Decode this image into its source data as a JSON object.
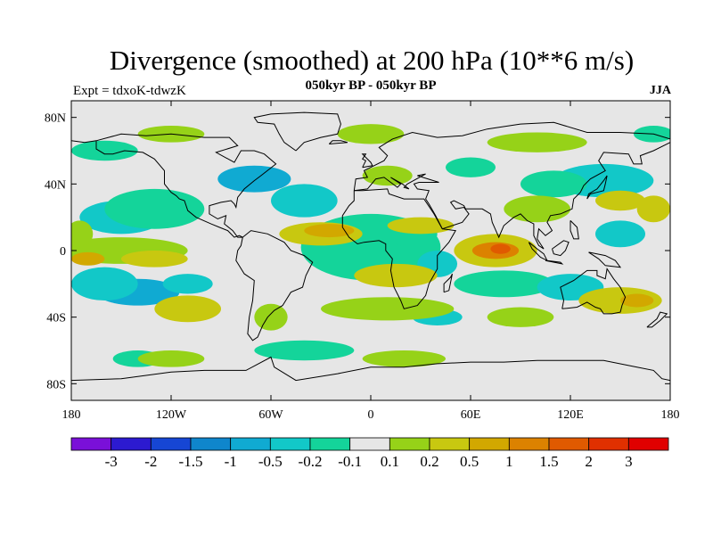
{
  "title": "Divergence (smoothed) at 200 hPa (10**6 m/s)",
  "subtitle": "050kyr BP - 050kyr BP",
  "left_label": "Expt = tdxoK-tdwzK",
  "right_label": "JJA",
  "map": {
    "projection": "cylindrical-equidistant",
    "lon_range": [
      -180,
      180
    ],
    "lat_range": [
      -90,
      90
    ],
    "lon_ticks": [
      {
        "value": -180,
        "label": "180"
      },
      {
        "value": -120,
        "label": "120W"
      },
      {
        "value": -60,
        "label": "60W"
      },
      {
        "value": 0,
        "label": "0"
      },
      {
        "value": 60,
        "label": "60E"
      },
      {
        "value": 120,
        "label": "120E"
      },
      {
        "value": 180,
        "label": "180"
      }
    ],
    "lat_ticks": [
      {
        "value": 80,
        "label": "80N"
      },
      {
        "value": 40,
        "label": "40N"
      },
      {
        "value": 0,
        "label": "0"
      },
      {
        "value": -40,
        "label": "40S"
      },
      {
        "value": -80,
        "label": "80S"
      }
    ],
    "background_color": "#e6e6e6",
    "coastline_color": "#000000"
  },
  "colorbar": {
    "colors": [
      "#7a10d8",
      "#2c1ad0",
      "#1646d4",
      "#0f86cc",
      "#10aad2",
      "#12c8c8",
      "#14d49a",
      "#e6e6e6",
      "#96d218",
      "#c8c810",
      "#d2a800",
      "#dc8200",
      "#e05a00",
      "#e03000",
      "#e00000"
    ],
    "labels": [
      "-3",
      "-2",
      "-1.5",
      "-1",
      "-0.5",
      "-0.2",
      "-0.1",
      "0.1",
      "0.2",
      "0.5",
      "1",
      "1.5",
      "2",
      "3"
    ]
  },
  "field_blobs": [
    {
      "lon": -5,
      "lat": -3,
      "rx": 8,
      "ry": 5,
      "level": 0
    },
    {
      "lon": -8,
      "lat": 0,
      "rx": 22,
      "ry": 10,
      "level": 2
    },
    {
      "lon": -5,
      "lat": 0,
      "rx": 30,
      "ry": 15,
      "level": 4
    },
    {
      "lon": 0,
      "lat": 2,
      "rx": 42,
      "ry": 20,
      "level": 6
    },
    {
      "lon": 25,
      "lat": 10,
      "rx": 15,
      "ry": 8,
      "level": 6
    },
    {
      "lon": 40,
      "lat": -8,
      "rx": 12,
      "ry": 8,
      "level": 5
    },
    {
      "lon": -150,
      "lat": 20,
      "rx": 25,
      "ry": 10,
      "level": 5
    },
    {
      "lon": -130,
      "lat": 25,
      "rx": 30,
      "ry": 12,
      "level": 6
    },
    {
      "lon": -140,
      "lat": -25,
      "rx": 25,
      "ry": 8,
      "level": 4
    },
    {
      "lon": -160,
      "lat": -20,
      "rx": 20,
      "ry": 10,
      "level": 5
    },
    {
      "lon": -110,
      "lat": -20,
      "rx": 15,
      "ry": 6,
      "level": 5
    },
    {
      "lon": -70,
      "lat": 43,
      "rx": 22,
      "ry": 8,
      "level": 4
    },
    {
      "lon": -40,
      "lat": 30,
      "rx": 20,
      "ry": 10,
      "level": 5
    },
    {
      "lon": 140,
      "lat": 42,
      "rx": 30,
      "ry": 10,
      "level": 5
    },
    {
      "lon": 110,
      "lat": 40,
      "rx": 20,
      "ry": 8,
      "level": 6
    },
    {
      "lon": 150,
      "lat": 10,
      "rx": 15,
      "ry": 8,
      "level": 5
    },
    {
      "lon": 80,
      "lat": -20,
      "rx": 30,
      "ry": 8,
      "level": 6
    },
    {
      "lon": 120,
      "lat": -22,
      "rx": 20,
      "ry": 8,
      "level": 5
    },
    {
      "lon": 40,
      "lat": -40,
      "rx": 15,
      "ry": 5,
      "level": 5
    },
    {
      "lon": -40,
      "lat": -60,
      "rx": 30,
      "ry": 6,
      "level": 6
    },
    {
      "lon": -140,
      "lat": -65,
      "rx": 15,
      "ry": 5,
      "level": 6
    },
    {
      "lon": -160,
      "lat": 60,
      "rx": 20,
      "ry": 6,
      "level": 6
    },
    {
      "lon": 60,
      "lat": 50,
      "rx": 15,
      "ry": 6,
      "level": 6
    },
    {
      "lon": 170,
      "lat": 70,
      "rx": 12,
      "ry": 5,
      "level": 6
    },
    {
      "lon": 75,
      "lat": 0,
      "rx": 25,
      "ry": 10,
      "level": 9
    },
    {
      "lon": 75,
      "lat": 0,
      "rx": 14,
      "ry": 5,
      "level": 11
    },
    {
      "lon": 78,
      "lat": 1,
      "rx": 6,
      "ry": 3,
      "level": 12
    },
    {
      "lon": -30,
      "lat": 10,
      "rx": 25,
      "ry": 7,
      "level": 9
    },
    {
      "lon": -25,
      "lat": 12,
      "rx": 15,
      "ry": 4,
      "level": 10
    },
    {
      "lon": 15,
      "lat": -15,
      "rx": 25,
      "ry": 7,
      "level": 9
    },
    {
      "lon": 30,
      "lat": 15,
      "rx": 20,
      "ry": 5,
      "level": 9
    },
    {
      "lon": -150,
      "lat": 0,
      "rx": 40,
      "ry": 8,
      "level": 8
    },
    {
      "lon": -130,
      "lat": -5,
      "rx": 20,
      "ry": 5,
      "level": 9
    },
    {
      "lon": -170,
      "lat": -5,
      "rx": 10,
      "ry": 4,
      "level": 10
    },
    {
      "lon": -110,
      "lat": -35,
      "rx": 20,
      "ry": 8,
      "level": 9
    },
    {
      "lon": 10,
      "lat": -35,
      "rx": 40,
      "ry": 7,
      "level": 8
    },
    {
      "lon": 150,
      "lat": -30,
      "rx": 25,
      "ry": 8,
      "level": 9
    },
    {
      "lon": 160,
      "lat": -30,
      "rx": 10,
      "ry": 4,
      "level": 10
    },
    {
      "lon": 100,
      "lat": 25,
      "rx": 20,
      "ry": 8,
      "level": 8
    },
    {
      "lon": 150,
      "lat": 30,
      "rx": 15,
      "ry": 6,
      "level": 9
    },
    {
      "lon": 170,
      "lat": 25,
      "rx": 10,
      "ry": 8,
      "level": 9
    },
    {
      "lon": 10,
      "lat": 45,
      "rx": 15,
      "ry": 6,
      "level": 8
    },
    {
      "lon": 0,
      "lat": 70,
      "rx": 20,
      "ry": 6,
      "level": 8
    },
    {
      "lon": 100,
      "lat": 65,
      "rx": 30,
      "ry": 6,
      "level": 8
    },
    {
      "lon": -120,
      "lat": 70,
      "rx": 20,
      "ry": 5,
      "level": 8
    },
    {
      "lon": -60,
      "lat": -40,
      "rx": 10,
      "ry": 8,
      "level": 8
    },
    {
      "lon": 90,
      "lat": -40,
      "rx": 20,
      "ry": 6,
      "level": 8
    },
    {
      "lon": -120,
      "lat": -65,
      "rx": 20,
      "ry": 5,
      "level": 8
    },
    {
      "lon": 20,
      "lat": -65,
      "rx": 25,
      "ry": 5,
      "level": 8
    },
    {
      "lon": -175,
      "lat": 10,
      "rx": 8,
      "ry": 8,
      "level": 8
    }
  ],
  "coastlines": [
    [
      [
        -165,
        66
      ],
      [
        -150,
        70
      ],
      [
        -135,
        69
      ],
      [
        -120,
        70
      ],
      [
        -100,
        68
      ],
      [
        -85,
        68
      ],
      [
        -80,
        63
      ],
      [
        -93,
        59
      ],
      [
        -82,
        53
      ],
      [
        -78,
        60
      ],
      [
        -70,
        60
      ],
      [
        -64,
        58
      ],
      [
        -57,
        52
      ],
      [
        -66,
        45
      ],
      [
        -70,
        42
      ],
      [
        -76,
        37
      ],
      [
        -80,
        32
      ],
      [
        -81,
        26
      ],
      [
        -82,
        28
      ],
      [
        -84,
        30
      ],
      [
        -90,
        29
      ],
      [
        -97,
        27
      ],
      [
        -97,
        22
      ],
      [
        -92,
        19
      ],
      [
        -87,
        21
      ],
      [
        -88,
        16
      ],
      [
        -83,
        12
      ],
      [
        -80,
        8
      ],
      [
        -77,
        8
      ],
      [
        -79,
        9
      ],
      [
        -82,
        8
      ],
      [
        -86,
        12
      ],
      [
        -91,
        14
      ],
      [
        -96,
        16
      ],
      [
        -105,
        20
      ],
      [
        -110,
        24
      ],
      [
        -112,
        30
      ],
      [
        -115,
        31
      ],
      [
        -117,
        33
      ],
      [
        -120,
        35
      ],
      [
        -124,
        40
      ],
      [
        -124,
        48
      ],
      [
        -130,
        55
      ],
      [
        -137,
        59
      ],
      [
        -148,
        60
      ],
      [
        -155,
        58
      ],
      [
        -160,
        58
      ],
      [
        -165,
        61
      ],
      [
        -165,
        66
      ]
    ],
    [
      [
        -77,
        8
      ],
      [
        -72,
        12
      ],
      [
        -62,
        10
      ],
      [
        -52,
        5
      ],
      [
        -48,
        0
      ],
      [
        -40,
        -3
      ],
      [
        -35,
        -7
      ],
      [
        -39,
        -15
      ],
      [
        -41,
        -22
      ],
      [
        -48,
        -25
      ],
      [
        -53,
        -33
      ],
      [
        -58,
        -36
      ],
      [
        -62,
        -40
      ],
      [
        -65,
        -45
      ],
      [
        -68,
        -52
      ],
      [
        -71,
        -54
      ],
      [
        -74,
        -50
      ],
      [
        -73,
        -40
      ],
      [
        -71,
        -30
      ],
      [
        -70,
        -18
      ],
      [
        -76,
        -14
      ],
      [
        -81,
        -6
      ],
      [
        -80,
        0
      ],
      [
        -78,
        3
      ],
      [
        -77,
        8
      ]
    ],
    [
      [
        -10,
        36
      ],
      [
        -5,
        36
      ],
      [
        10,
        37
      ],
      [
        11,
        34
      ],
      [
        20,
        31
      ],
      [
        32,
        31
      ],
      [
        34,
        28
      ],
      [
        38,
        22
      ],
      [
        43,
        13
      ],
      [
        51,
        12
      ],
      [
        47,
        5
      ],
      [
        40,
        -3
      ],
      [
        40,
        -11
      ],
      [
        35,
        -20
      ],
      [
        33,
        -27
      ],
      [
        28,
        -33
      ],
      [
        20,
        -35
      ],
      [
        18,
        -30
      ],
      [
        14,
        -22
      ],
      [
        12,
        -12
      ],
      [
        13,
        -5
      ],
      [
        9,
        0
      ],
      [
        9,
        4
      ],
      [
        5,
        6
      ],
      [
        -4,
        5
      ],
      [
        -8,
        4
      ],
      [
        -13,
        8
      ],
      [
        -17,
        14
      ],
      [
        -17,
        21
      ],
      [
        -13,
        27
      ],
      [
        -10,
        30
      ],
      [
        -10,
        36
      ]
    ],
    [
      [
        -10,
        36
      ],
      [
        -9,
        43
      ],
      [
        -2,
        44
      ],
      [
        -4,
        48
      ],
      [
        2,
        51
      ],
      [
        8,
        54
      ],
      [
        10,
        57
      ],
      [
        5,
        62
      ],
      [
        13,
        67
      ],
      [
        25,
        71
      ],
      [
        40,
        68
      ],
      [
        55,
        69
      ],
      [
        70,
        73
      ],
      [
        90,
        76
      ],
      [
        110,
        77
      ],
      [
        130,
        71
      ],
      [
        150,
        71
      ],
      [
        170,
        70
      ],
      [
        180,
        67
      ]
    ],
    [
      [
        -180,
        66
      ],
      [
        -172,
        65
      ],
      [
        -165,
        66
      ]
    ],
    [
      [
        180,
        65
      ],
      [
        170,
        60
      ],
      [
        162,
        57
      ],
      [
        163,
        52
      ],
      [
        158,
        52
      ],
      [
        155,
        58
      ],
      [
        140,
        59
      ],
      [
        137,
        54
      ],
      [
        141,
        48
      ],
      [
        132,
        43
      ],
      [
        128,
        39
      ],
      [
        126,
        35
      ],
      [
        122,
        31
      ],
      [
        121,
        25
      ],
      [
        114,
        22
      ],
      [
        108,
        21
      ],
      [
        106,
        17
      ],
      [
        109,
        12
      ],
      [
        105,
        9
      ],
      [
        101,
        13
      ],
      [
        100,
        7
      ],
      [
        104,
        1
      ],
      [
        101,
        3
      ],
      [
        98,
        9
      ],
      [
        98,
        16
      ],
      [
        94,
        18
      ],
      [
        90,
        22
      ],
      [
        86,
        20
      ],
      [
        80,
        15
      ],
      [
        77,
        8
      ],
      [
        73,
        17
      ],
      [
        72,
        22
      ],
      [
        67,
        25
      ],
      [
        57,
        25
      ],
      [
        56,
        27
      ],
      [
        50,
        30
      ],
      [
        48,
        29
      ],
      [
        51,
        25
      ],
      [
        56,
        26
      ],
      [
        59,
        22
      ],
      [
        55,
        17
      ],
      [
        43,
        13
      ],
      [
        39,
        21
      ],
      [
        35,
        28
      ],
      [
        33,
        31
      ],
      [
        35,
        36
      ],
      [
        28,
        37
      ],
      [
        26,
        40
      ],
      [
        29,
        41
      ],
      [
        41,
        41
      ],
      [
        28,
        45
      ],
      [
        33,
        46
      ],
      [
        22,
        40
      ],
      [
        20,
        38
      ],
      [
        23,
        37
      ],
      [
        19,
        40
      ],
      [
        12,
        44
      ],
      [
        18,
        40
      ],
      [
        16,
        38
      ],
      [
        8,
        44
      ],
      [
        3,
        43
      ],
      [
        -2,
        37
      ],
      [
        -10,
        36
      ]
    ],
    [
      [
        -5,
        50
      ],
      [
        1,
        51
      ],
      [
        0,
        53
      ],
      [
        -3,
        56
      ],
      [
        -5,
        58
      ],
      [
        -3,
        58
      ],
      [
        -5,
        55
      ],
      [
        -3,
        54
      ],
      [
        -5,
        50
      ]
    ],
    [
      [
        -45,
        60
      ],
      [
        -52,
        65
      ],
      [
        -55,
        70
      ],
      [
        -58,
        76
      ],
      [
        -68,
        77
      ],
      [
        -70,
        80
      ],
      [
        -60,
        82
      ],
      [
        -40,
        83
      ],
      [
        -20,
        82
      ],
      [
        -18,
        76
      ],
      [
        -20,
        70
      ],
      [
        -30,
        68
      ],
      [
        -40,
        65
      ],
      [
        -45,
        60
      ]
    ],
    [
      [
        -25,
        64
      ],
      [
        -14,
        65
      ],
      [
        -18,
        66
      ],
      [
        -23,
        66
      ],
      [
        -25,
        64
      ]
    ],
    [
      [
        115,
        -35
      ],
      [
        116,
        -30
      ],
      [
        114,
        -22
      ],
      [
        122,
        -18
      ],
      [
        130,
        -12
      ],
      [
        136,
        -12
      ],
      [
        136,
        -15
      ],
      [
        141,
        -17
      ],
      [
        142,
        -11
      ],
      [
        146,
        -17
      ],
      [
        150,
        -22
      ],
      [
        153,
        -28
      ],
      [
        151,
        -33
      ],
      [
        150,
        -37
      ],
      [
        145,
        -38
      ],
      [
        140,
        -38
      ],
      [
        138,
        -35
      ],
      [
        135,
        -34
      ],
      [
        130,
        -31
      ],
      [
        124,
        -34
      ],
      [
        115,
        -35
      ]
    ],
    [
      [
        95,
        5
      ],
      [
        100,
        1
      ],
      [
        104,
        -2
      ],
      [
        106,
        -6
      ],
      [
        102,
        -4
      ],
      [
        97,
        1
      ],
      [
        95,
        5
      ]
    ],
    [
      [
        105,
        -6
      ],
      [
        115,
        -8
      ],
      [
        114,
        -7
      ],
      [
        106,
        -6
      ],
      [
        105,
        -6
      ]
    ],
    [
      [
        109,
        1
      ],
      [
        116,
        6
      ],
      [
        119,
        5
      ],
      [
        117,
        0
      ],
      [
        114,
        -3
      ],
      [
        110,
        -2
      ],
      [
        109,
        1
      ]
    ],
    [
      [
        131,
        -1
      ],
      [
        141,
        -3
      ],
      [
        147,
        -6
      ],
      [
        150,
        -10
      ],
      [
        141,
        -9
      ],
      [
        137,
        -5
      ],
      [
        131,
        -1
      ]
    ],
    [
      [
        130,
        31
      ],
      [
        132,
        34
      ],
      [
        136,
        35
      ],
      [
        140,
        36
      ],
      [
        141,
        40
      ],
      [
        142,
        45
      ],
      [
        140,
        42
      ],
      [
        136,
        37
      ],
      [
        131,
        34
      ],
      [
        130,
        31
      ]
    ],
    [
      [
        120,
        18
      ],
      [
        124,
        14
      ],
      [
        125,
        7
      ],
      [
        122,
        7
      ],
      [
        120,
        12
      ],
      [
        120,
        18
      ]
    ],
    [
      [
        44,
        -25
      ],
      [
        47,
        -24
      ],
      [
        49,
        -14
      ],
      [
        48,
        -16
      ],
      [
        44,
        -20
      ],
      [
        44,
        -25
      ]
    ],
    [
      [
        166,
        -46
      ],
      [
        172,
        -41
      ],
      [
        174,
        -37
      ],
      [
        178,
        -38
      ],
      [
        174,
        -42
      ],
      [
        169,
        -46
      ],
      [
        166,
        -46
      ]
    ],
    [
      [
        -180,
        -78
      ],
      [
        -150,
        -77
      ],
      [
        -120,
        -73
      ],
      [
        -100,
        -72
      ],
      [
        -75,
        -72
      ],
      [
        -60,
        -64
      ],
      [
        -58,
        -70
      ],
      [
        -45,
        -78
      ],
      [
        -20,
        -74
      ],
      [
        0,
        -70
      ],
      [
        20,
        -70
      ],
      [
        40,
        -68
      ],
      [
        60,
        -67
      ],
      [
        80,
        -67
      ],
      [
        100,
        -66
      ],
      [
        120,
        -66
      ],
      [
        140,
        -66
      ],
      [
        160,
        -70
      ],
      [
        170,
        -72
      ],
      [
        175,
        -77
      ],
      [
        180,
        -78
      ]
    ]
  ]
}
